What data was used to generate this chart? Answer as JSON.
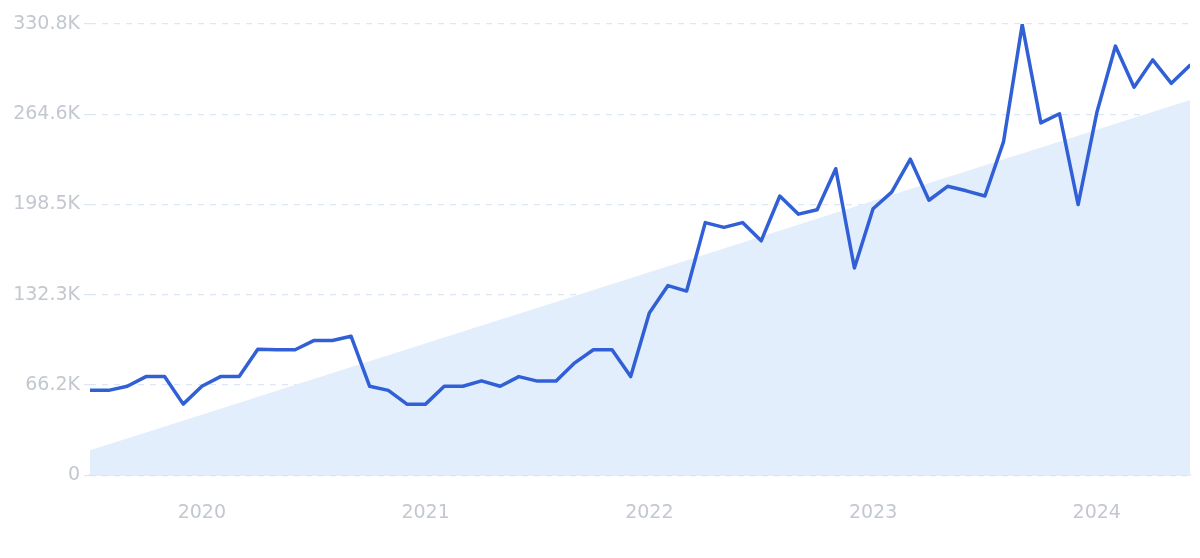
{
  "chart_data": {
    "type": "line",
    "xlim": [
      "2019-07",
      "2024-06"
    ],
    "xticks": [
      "2020",
      "2021",
      "2022",
      "2023",
      "2024"
    ],
    "ylim": [
      0,
      330800
    ],
    "yticks": [
      {
        "value": 0,
        "label": "0"
      },
      {
        "value": 66160,
        "label": "66.2K"
      },
      {
        "value": 132320,
        "label": "132.3K"
      },
      {
        "value": 198480,
        "label": "198.5K"
      },
      {
        "value": 264640,
        "label": "264.6K"
      },
      {
        "value": 330800,
        "label": "330.8K"
      }
    ],
    "grid": "y",
    "legend": false,
    "marker": "none",
    "line_style": "solid",
    "series": [
      {
        "type": "area",
        "color": "#e3eefc",
        "x": [
          "2019-07",
          "2024-06"
        ],
        "values": [
          18300,
          275000
        ]
      },
      {
        "type": "line",
        "color": "#3160d6",
        "x": [
          "2019-07",
          "2019-08",
          "2019-09",
          "2019-10",
          "2019-11",
          "2019-12",
          "2020-01",
          "2020-02",
          "2020-03",
          "2020-04",
          "2020-05",
          "2020-06",
          "2020-07",
          "2020-08",
          "2020-09",
          "2020-10",
          "2020-11",
          "2020-12",
          "2021-01",
          "2021-02",
          "2021-03",
          "2021-04",
          "2021-05",
          "2021-06",
          "2021-07",
          "2021-08",
          "2021-09",
          "2021-10",
          "2021-11",
          "2021-12",
          "2022-01",
          "2022-02",
          "2022-03",
          "2022-04",
          "2022-05",
          "2022-06",
          "2022-07",
          "2022-08",
          "2022-09",
          "2022-10",
          "2022-11",
          "2022-12",
          "2023-01",
          "2023-02",
          "2023-03",
          "2023-04",
          "2023-05",
          "2023-06",
          "2023-07",
          "2023-08",
          "2023-09",
          "2023-10",
          "2023-11",
          "2023-12",
          "2024-01",
          "2024-02",
          "2024-03",
          "2024-04",
          "2024-05",
          "2024-06"
        ],
        "values": [
          62200,
          62200,
          65200,
          72300,
          72300,
          52100,
          65200,
          72300,
          72300,
          92300,
          92000,
          92000,
          98700,
          98700,
          101900,
          65200,
          62200,
          52100,
          52100,
          65200,
          65200,
          69200,
          65200,
          72300,
          69000,
          69000,
          82400,
          92000,
          92000,
          72300,
          119000,
          139000,
          135000,
          185200,
          181700,
          185200,
          171800,
          204700,
          191400,
          194600,
          224700,
          151900,
          195300,
          207500,
          231700,
          201600,
          211800,
          208500,
          204700,
          244600,
          330300,
          258300,
          265000,
          198400,
          265700,
          314600,
          284500,
          304500,
          287300,
          300500
        ]
      }
    ]
  }
}
